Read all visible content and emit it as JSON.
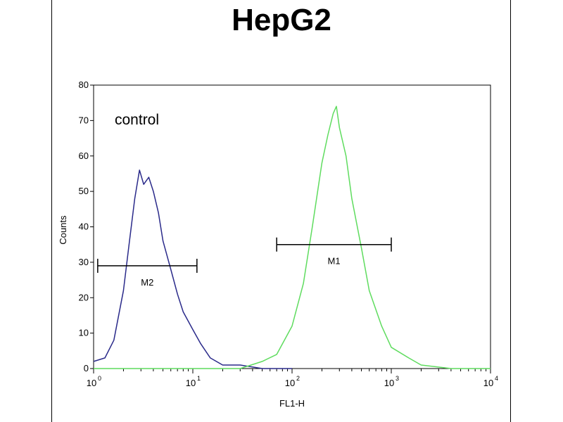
{
  "chart_data": {
    "type": "line",
    "title": "HepG2",
    "xlabel": "FL1-H",
    "ylabel": "Counts",
    "x_scale": "log",
    "xlim": [
      1,
      10000
    ],
    "ylim": [
      0,
      80
    ],
    "x_ticks": [
      {
        "base": "10",
        "exp": "0",
        "value": 1
      },
      {
        "base": "10",
        "exp": "1",
        "value": 10
      },
      {
        "base": "10",
        "exp": "2",
        "value": 100
      },
      {
        "base": "10",
        "exp": "3",
        "value": 1000
      },
      {
        "base": "10",
        "exp": "4",
        "value": 10000
      }
    ],
    "y_ticks": [
      "0",
      "10",
      "20",
      "30",
      "40",
      "50",
      "60",
      "70",
      "80"
    ],
    "annotation": "control",
    "series": [
      {
        "color": "#2a2a8a",
        "x": [
          1,
          1.3,
          1.6,
          2.0,
          2.3,
          2.6,
          2.9,
          3.2,
          3.6,
          4.0,
          4.5,
          5.0,
          6.0,
          7.0,
          8.0,
          10.0,
          12.0,
          15.0,
          20.0,
          30.0,
          50.0,
          100.0
        ],
        "y": [
          2,
          3,
          8,
          22,
          36,
          48,
          56,
          52,
          54,
          50,
          44,
          36,
          28,
          21,
          16,
          11,
          7,
          3,
          1,
          1,
          0,
          0
        ]
      },
      {
        "color": "#5fdc5f",
        "x": [
          1,
          10,
          30,
          50,
          70,
          100,
          130,
          160,
          200,
          230,
          260,
          280,
          300,
          350,
          400,
          500,
          600,
          800,
          1000,
          1500,
          2000,
          4000,
          10000
        ],
        "y": [
          0,
          0,
          0,
          2,
          4,
          12,
          24,
          40,
          58,
          66,
          72,
          74,
          68,
          60,
          48,
          34,
          22,
          12,
          6,
          3,
          1,
          0,
          0
        ]
      }
    ],
    "markers": [
      {
        "label": "M2",
        "x_start": 1.1,
        "x_end": 11,
        "y": 29
      },
      {
        "label": "M1",
        "x_start": 70,
        "x_end": 1000,
        "y": 35
      }
    ]
  }
}
